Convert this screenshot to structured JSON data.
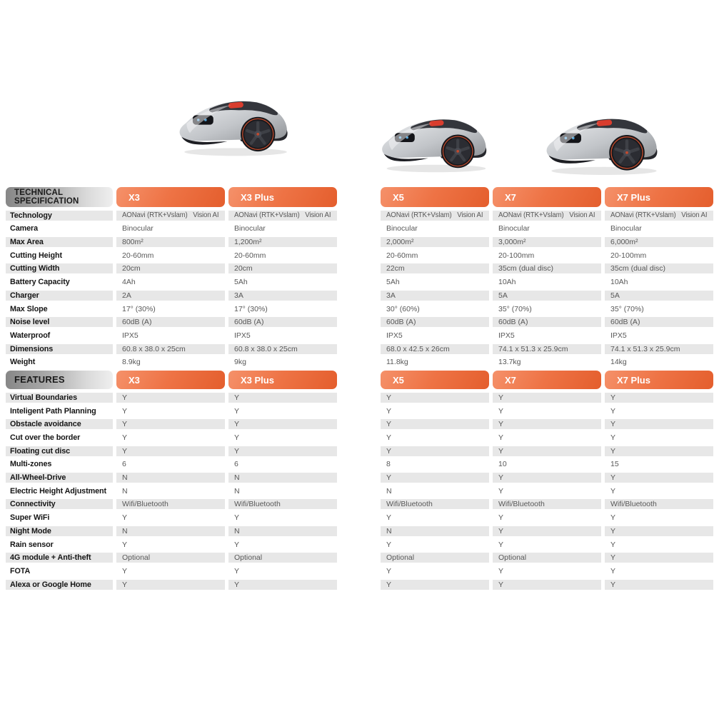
{
  "products": [
    "X3",
    "X3 Plus",
    "X5",
    "X7",
    "X7 Plus"
  ],
  "images": {
    "items": [
      {
        "name": "robot-mower-x3"
      },
      {
        "name": "robot-mower-x5"
      },
      {
        "name": "robot-mower-x7-plus"
      }
    ]
  },
  "colors": {
    "accent_orange": "#EC6F3F",
    "row_band_gray": "#E7E7E7",
    "section_header_gray_start": "#878787",
    "section_header_gray_end": "#EFEFEF"
  },
  "technical_specification": {
    "title_line1": "TECHNICAL",
    "title_line2": "SPECIFICATION",
    "columns": [
      "X3",
      "X3 Plus",
      "X5",
      "X7",
      "X7 Plus"
    ],
    "rows": [
      {
        "label": "Technology",
        "values": [
          "AONavi (RTK+Vslam)   Vision AI",
          "AONavi (RTK+Vslam)   Vision AI",
          "AONavi (RTK+Vslam)   Vision AI",
          "AONavi (RTK+Vslam)   Vision AI",
          "AONavi (RTK+Vslam)   Vision AI"
        ]
      },
      {
        "label": "Camera",
        "values": [
          "Binocular",
          "Binocular",
          "Binocular",
          "Binocular",
          "Binocular"
        ]
      },
      {
        "label": "Max Area",
        "values": [
          "800m²",
          "1,200m²",
          "2,000m²",
          "3,000m²",
          "6,000m²"
        ]
      },
      {
        "label": "Cutting Height",
        "values": [
          "20-60mm",
          "20-60mm",
          "20-60mm",
          "20-100mm",
          "20-100mm"
        ]
      },
      {
        "label": "Cutting Width",
        "values": [
          "20cm",
          "20cm",
          "22cm",
          "35cm (dual disc)",
          "35cm (dual disc)"
        ]
      },
      {
        "label": "Battery Capacity",
        "values": [
          "4Ah",
          "5Ah",
          "5Ah",
          "10Ah",
          "10Ah"
        ]
      },
      {
        "label": "Charger",
        "values": [
          "2A",
          "3A",
          "3A",
          "5A",
          "5A"
        ]
      },
      {
        "label": "Max Slope",
        "values": [
          "17° (30%)",
          "17° (30%)",
          "30° (60%)",
          "35° (70%)",
          "35° (70%)"
        ]
      },
      {
        "label": "Noise level",
        "values": [
          "60dB (A)",
          "60dB (A)",
          "60dB (A)",
          "60dB (A)",
          "60dB (A)"
        ]
      },
      {
        "label": "Waterproof",
        "values": [
          "IPX5",
          "IPX5",
          "IPX5",
          "IPX5",
          "IPX5"
        ]
      },
      {
        "label": "Dimensions",
        "values": [
          "60.8 x 38.0 x 25cm",
          "60.8 x 38.0 x 25cm",
          "68.0 x 42.5 x 26cm",
          "74.1 x 51.3 x 25.9cm",
          "74.1 x 51.3 x 25.9cm"
        ]
      },
      {
        "label": "Weight",
        "values": [
          "8.9kg",
          "9kg",
          "11.8kg",
          "13.7kg",
          "14kg"
        ]
      }
    ]
  },
  "features": {
    "title": "FEATURES",
    "columns": [
      "X3",
      "X3 Plus",
      "X5",
      "X7",
      "X7 Plus"
    ],
    "rows": [
      {
        "label": "Virtual Boundaries",
        "values": [
          "Y",
          "Y",
          "Y",
          "Y",
          "Y"
        ]
      },
      {
        "label": "Inteligent Path Planning",
        "values": [
          "Y",
          "Y",
          "Y",
          "Y",
          "Y"
        ]
      },
      {
        "label": "Obstacle avoidance",
        "values": [
          "Y",
          "Y",
          "Y",
          "Y",
          "Y"
        ]
      },
      {
        "label": "Cut over the border",
        "values": [
          "Y",
          "Y",
          "Y",
          "Y",
          "Y"
        ]
      },
      {
        "label": "Floating cut disc",
        "values": [
          "Y",
          "Y",
          "Y",
          "Y",
          "Y"
        ]
      },
      {
        "label": "Multi-zones",
        "values": [
          "6",
          "6",
          "8",
          "10",
          "15"
        ]
      },
      {
        "label": "All-Wheel-Drive",
        "values": [
          "N",
          "N",
          "Y",
          "Y",
          "Y"
        ]
      },
      {
        "label": "Electric Height Adjustment",
        "values": [
          "N",
          "N",
          "N",
          "Y",
          "Y"
        ]
      },
      {
        "label": "Connectivity",
        "values": [
          "Wifi/Bluetooth",
          "Wifi/Bluetooth",
          "Wifi/Bluetooth",
          "Wifi/Bluetooth",
          "Wifi/Bluetooth"
        ]
      },
      {
        "label": "Super WiFi",
        "values": [
          "Y",
          "Y",
          "Y",
          "Y",
          "Y"
        ]
      },
      {
        "label": "Night Mode",
        "values": [
          "N",
          "N",
          "N",
          "Y",
          "Y"
        ]
      },
      {
        "label": "Rain sensor",
        "values": [
          "Y",
          "Y",
          "Y",
          "Y",
          "Y"
        ]
      },
      {
        "label": "4G module + Anti-theft",
        "values": [
          "Optional",
          "Optional",
          "Optional",
          "Optional",
          "Y"
        ]
      },
      {
        "label": "FOTA",
        "values": [
          "Y",
          "Y",
          "Y",
          "Y",
          "Y"
        ]
      },
      {
        "label": "Alexa or Google Home",
        "values": [
          "Y",
          "Y",
          "Y",
          "Y",
          "Y"
        ]
      }
    ]
  }
}
